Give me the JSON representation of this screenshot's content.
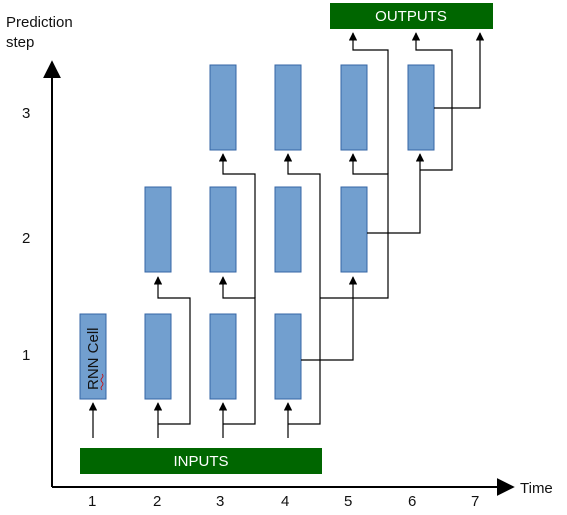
{
  "axes": {
    "y_title_line1": "Prediction",
    "y_title_line2": "step",
    "x_title": "Time",
    "y_ticks": [
      "1",
      "2",
      "3"
    ],
    "x_ticks": [
      "1",
      "2",
      "3",
      "4",
      "5",
      "6",
      "7"
    ]
  },
  "banners": {
    "inputs": "INPUTS",
    "outputs": "OUTPUTS",
    "color": "#006600"
  },
  "cell_label": "RNN Cell",
  "cell_color": "#729fcf",
  "cells": [
    {
      "t": 1,
      "step": 1,
      "labeled": true
    },
    {
      "t": 2,
      "step": 1
    },
    {
      "t": 3,
      "step": 1
    },
    {
      "t": 4,
      "step": 1
    },
    {
      "t": 2,
      "step": 2
    },
    {
      "t": 3,
      "step": 2
    },
    {
      "t": 4,
      "step": 2
    },
    {
      "t": 5,
      "step": 2
    },
    {
      "t": 3,
      "step": 3
    },
    {
      "t": 4,
      "step": 3
    },
    {
      "t": 5,
      "step": 3
    },
    {
      "t": 6,
      "step": 3
    }
  ]
}
